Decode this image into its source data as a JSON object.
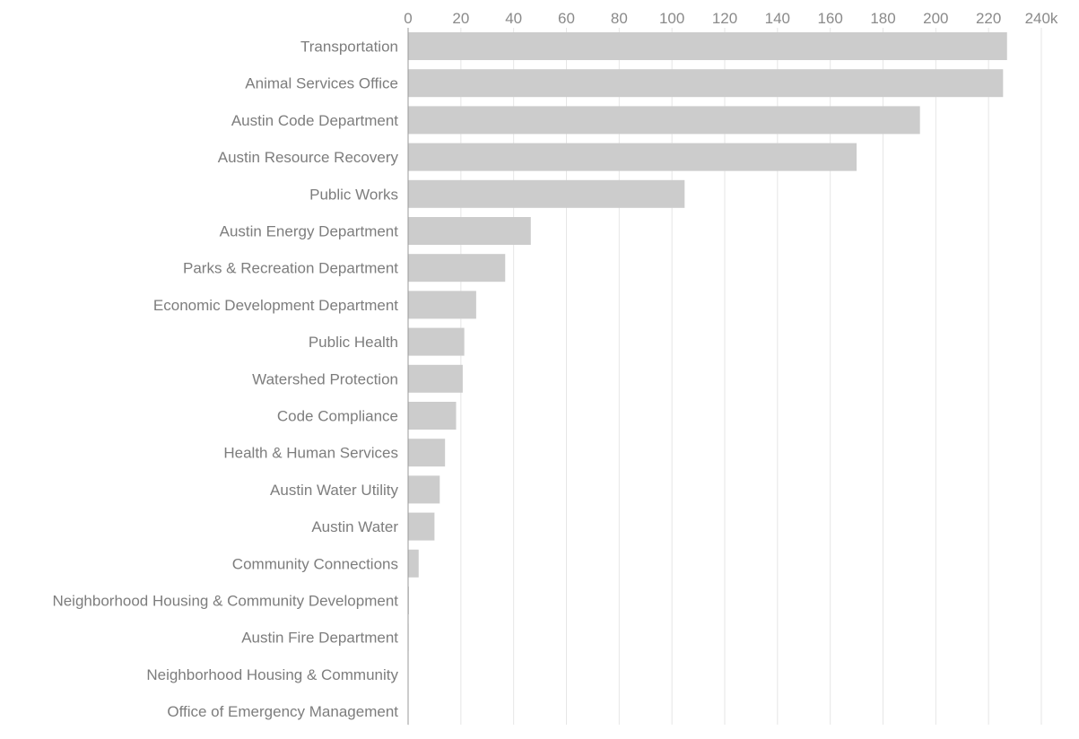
{
  "chart_data": {
    "type": "bar",
    "orientation": "horizontal",
    "title": "",
    "xlabel": "",
    "ylabel": "",
    "xlim": [
      0,
      240000
    ],
    "x_ticks": [
      0,
      20000,
      40000,
      60000,
      80000,
      100000,
      120000,
      140000,
      160000,
      180000,
      200000,
      220000,
      240000
    ],
    "x_tick_labels": [
      "0",
      "20",
      "40",
      "60",
      "80",
      "100",
      "120",
      "140",
      "160",
      "180",
      "200",
      "220",
      "240k"
    ],
    "x_axis_position": "top",
    "grid": true,
    "bar_color": "#cccccc",
    "categories": [
      "Transportation",
      "Animal Services Office",
      "Austin Code Department",
      "Austin Resource Recovery",
      "Public Works",
      "Austin Energy Department",
      "Parks & Recreation Department",
      "Economic Development Department",
      "Public Health",
      "Watershed Protection",
      "Code Compliance",
      "Health & Human Services",
      "Austin Water Utility",
      "Austin Water",
      "Community Connections",
      "Neighborhood Housing & Community Development",
      "Austin Fire Department",
      "Neighborhood Housing & Community",
      "Office of Emergency Management"
    ],
    "values": [
      227000,
      225500,
      194000,
      170000,
      104800,
      46500,
      36800,
      25800,
      21300,
      20700,
      18200,
      14000,
      12000,
      10000,
      4000,
      300,
      200,
      100,
      100
    ]
  }
}
